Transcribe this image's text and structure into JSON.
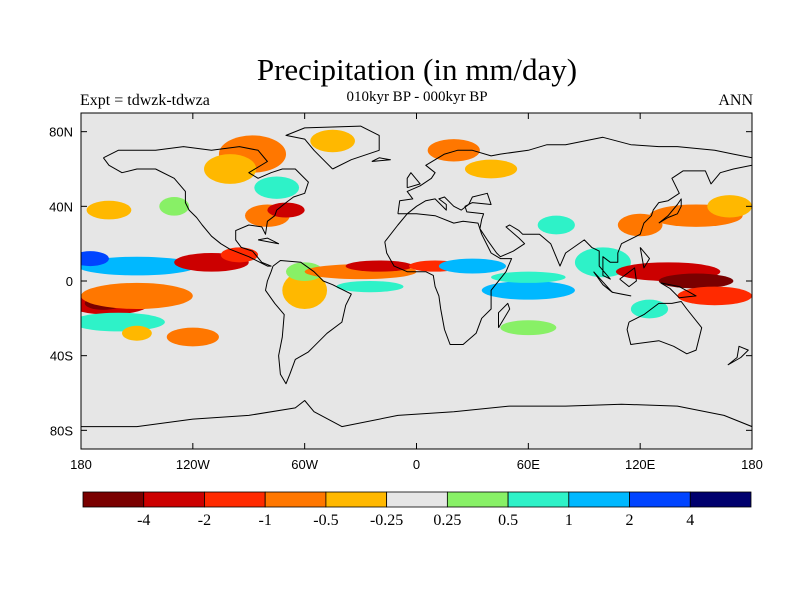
{
  "header": {
    "title": "Precipitation (in mm/day)",
    "subtitle": "010kyr BP - 000kyr BP",
    "left_label": "Expt = tdwzk-tdwza",
    "right_label": "ANN"
  },
  "map": {
    "projection": "cylindrical equidistant",
    "ocean_land_background": "#e6e6e6",
    "coastline_color": "#000000",
    "lat_range": [
      -90,
      90
    ],
    "lon_range": [
      -180,
      180
    ]
  },
  "axes": {
    "y_ticks": [
      {
        "value": 80,
        "label": "80N"
      },
      {
        "value": 40,
        "label": "40N"
      },
      {
        "value": 0,
        "label": "0"
      },
      {
        "value": -40,
        "label": "40S"
      },
      {
        "value": -80,
        "label": "80S"
      }
    ],
    "x_ticks": [
      {
        "value": -180,
        "label": "180"
      },
      {
        "value": -120,
        "label": "120W"
      },
      {
        "value": -60,
        "label": "60W"
      },
      {
        "value": 0,
        "label": "0"
      },
      {
        "value": 60,
        "label": "60E"
      },
      {
        "value": 120,
        "label": "120E"
      },
      {
        "value": 180,
        "label": "180"
      }
    ]
  },
  "colorbar": {
    "colors": [
      "#7a0000",
      "#cc0000",
      "#ff2a00",
      "#ff7700",
      "#ffb800",
      "#e6e6e6",
      "#88f066",
      "#2ef2c8",
      "#00b8ff",
      "#0044ff",
      "#00006e"
    ],
    "labels": [
      "-4",
      "-2",
      "-1",
      "-0.5",
      "-0.25",
      "0.25",
      "0.5",
      "1",
      "2",
      "4"
    ]
  },
  "anomaly_patches": [
    {
      "lon": -165,
      "lat": -12,
      "rx": 22,
      "ry": 6,
      "color": "#cc0000"
    },
    {
      "lon": -168,
      "lat": -12,
      "rx": 10,
      "ry": 3.5,
      "color": "#7a0000"
    },
    {
      "lon": -150,
      "lat": -8,
      "rx": 30,
      "ry": 7,
      "color": "#ff7700"
    },
    {
      "lon": -150,
      "lat": 8,
      "rx": 32,
      "ry": 5,
      "color": "#00b8ff"
    },
    {
      "lon": -175,
      "lat": 12,
      "rx": 10,
      "ry": 4,
      "color": "#0044ff"
    },
    {
      "lon": -160,
      "lat": -22,
      "rx": 25,
      "ry": 5,
      "color": "#2ef2c8"
    },
    {
      "lon": -165,
      "lat": 38,
      "rx": 12,
      "ry": 5,
      "color": "#ffb800"
    },
    {
      "lon": -120,
      "lat": -30,
      "rx": 14,
      "ry": 5,
      "color": "#ff7700"
    },
    {
      "lon": -110,
      "lat": 10,
      "rx": 20,
      "ry": 5,
      "color": "#cc0000"
    },
    {
      "lon": -95,
      "lat": 14,
      "rx": 10,
      "ry": 4,
      "color": "#ff2a00"
    },
    {
      "lon": -80,
      "lat": 35,
      "rx": 12,
      "ry": 6,
      "color": "#ff7700"
    },
    {
      "lon": -70,
      "lat": 38,
      "rx": 10,
      "ry": 4,
      "color": "#cc0000"
    },
    {
      "lon": -88,
      "lat": 68,
      "rx": 18,
      "ry": 10,
      "color": "#ff7700"
    },
    {
      "lon": -100,
      "lat": 60,
      "rx": 14,
      "ry": 8,
      "color": "#ffb800"
    },
    {
      "lon": -45,
      "lat": 75,
      "rx": 12,
      "ry": 6,
      "color": "#ffb800"
    },
    {
      "lon": -75,
      "lat": 50,
      "rx": 12,
      "ry": 6,
      "color": "#2ef2c8"
    },
    {
      "lon": -60,
      "lat": -5,
      "rx": 12,
      "ry": 10,
      "color": "#ffb800"
    },
    {
      "lon": -60,
      "lat": 5,
      "rx": 10,
      "ry": 5,
      "color": "#88f066"
    },
    {
      "lon": -30,
      "lat": 5,
      "rx": 30,
      "ry": 4,
      "color": "#ff7700"
    },
    {
      "lon": -20,
      "lat": 8,
      "rx": 18,
      "ry": 3,
      "color": "#cc0000"
    },
    {
      "lon": -25,
      "lat": -3,
      "rx": 18,
      "ry": 3,
      "color": "#2ef2c8"
    },
    {
      "lon": 10,
      "lat": 8,
      "rx": 14,
      "ry": 3,
      "color": "#ff2a00"
    },
    {
      "lon": 30,
      "lat": 8,
      "rx": 18,
      "ry": 4,
      "color": "#00b8ff"
    },
    {
      "lon": 60,
      "lat": -5,
      "rx": 25,
      "ry": 5,
      "color": "#00b8ff"
    },
    {
      "lon": 60,
      "lat": 2,
      "rx": 20,
      "ry": 3,
      "color": "#2ef2c8"
    },
    {
      "lon": 100,
      "lat": 10,
      "rx": 15,
      "ry": 8,
      "color": "#2ef2c8"
    },
    {
      "lon": 135,
      "lat": 5,
      "rx": 28,
      "ry": 5,
      "color": "#cc0000"
    },
    {
      "lon": 150,
      "lat": 0,
      "rx": 20,
      "ry": 4,
      "color": "#7a0000"
    },
    {
      "lon": 160,
      "lat": -8,
      "rx": 20,
      "ry": 5,
      "color": "#ff2a00"
    },
    {
      "lon": 150,
      "lat": 35,
      "rx": 25,
      "ry": 6,
      "color": "#ff7700"
    },
    {
      "lon": 168,
      "lat": 40,
      "rx": 12,
      "ry": 6,
      "color": "#ffb800"
    },
    {
      "lon": 120,
      "lat": 30,
      "rx": 12,
      "ry": 6,
      "color": "#ff7700"
    },
    {
      "lon": 125,
      "lat": -15,
      "rx": 10,
      "ry": 5,
      "color": "#2ef2c8"
    },
    {
      "lon": 20,
      "lat": 70,
      "rx": 14,
      "ry": 6,
      "color": "#ff7700"
    },
    {
      "lon": 40,
      "lat": 60,
      "rx": 14,
      "ry": 5,
      "color": "#ffb800"
    },
    {
      "lon": 75,
      "lat": 30,
      "rx": 10,
      "ry": 5,
      "color": "#2ef2c8"
    },
    {
      "lon": 60,
      "lat": -25,
      "rx": 15,
      "ry": 4,
      "color": "#88f066"
    },
    {
      "lon": -150,
      "lat": -28,
      "rx": 8,
      "ry": 4,
      "color": "#ffb800"
    },
    {
      "lon": -130,
      "lat": 40,
      "rx": 8,
      "ry": 5,
      "color": "#88f066"
    }
  ],
  "coastlines": [
    [
      [
        -168,
        66
      ],
      [
        -160,
        70
      ],
      [
        -140,
        70
      ],
      [
        -125,
        72
      ],
      [
        -110,
        70
      ],
      [
        -95,
        72
      ],
      [
        -85,
        70
      ],
      [
        -80,
        64
      ],
      [
        -90,
        58
      ],
      [
        -85,
        55
      ],
      [
        -78,
        58
      ],
      [
        -72,
        60
      ],
      [
        -65,
        60
      ],
      [
        -58,
        53
      ],
      [
        -60,
        47
      ],
      [
        -66,
        45
      ],
      [
        -70,
        42
      ],
      [
        -75,
        38
      ],
      [
        -76,
        35
      ],
      [
        -80,
        32
      ],
      [
        -81,
        25
      ],
      [
        -83,
        29
      ],
      [
        -90,
        30
      ],
      [
        -97,
        27
      ],
      [
        -97,
        22
      ],
      [
        -94,
        18
      ],
      [
        -88,
        16
      ],
      [
        -83,
        10
      ],
      [
        -78,
        8
      ],
      [
        -80,
        8
      ],
      [
        -84,
        10
      ],
      [
        -90,
        13
      ],
      [
        -100,
        17
      ],
      [
        -105,
        20
      ],
      [
        -110,
        24
      ],
      [
        -115,
        30
      ],
      [
        -118,
        34
      ],
      [
        -122,
        38
      ],
      [
        -124,
        42
      ],
      [
        -124,
        48
      ],
      [
        -130,
        55
      ],
      [
        -140,
        60
      ],
      [
        -150,
        60
      ],
      [
        -158,
        58
      ],
      [
        -165,
        62
      ],
      [
        -168,
        66
      ]
    ],
    [
      [
        -77,
        8
      ],
      [
        -73,
        11
      ],
      [
        -62,
        10
      ],
      [
        -55,
        5
      ],
      [
        -50,
        0
      ],
      [
        -45,
        -2
      ],
      [
        -35,
        -7
      ],
      [
        -38,
        -13
      ],
      [
        -40,
        -22
      ],
      [
        -48,
        -28
      ],
      [
        -55,
        -35
      ],
      [
        -58,
        -38
      ],
      [
        -65,
        -42
      ],
      [
        -68,
        -50
      ],
      [
        -70,
        -55
      ],
      [
        -73,
        -50
      ],
      [
        -74,
        -40
      ],
      [
        -72,
        -30
      ],
      [
        -71,
        -18
      ],
      [
        -76,
        -12
      ],
      [
        -81,
        -5
      ],
      [
        -80,
        0
      ],
      [
        -78,
        5
      ],
      [
        -77,
        8
      ]
    ],
    [
      [
        -17,
        21
      ],
      [
        -16,
        15
      ],
      [
        -12,
        8
      ],
      [
        -5,
        5
      ],
      [
        5,
        5
      ],
      [
        9,
        3
      ],
      [
        10,
        -3
      ],
      [
        12,
        -8
      ],
      [
        13,
        -15
      ],
      [
        15,
        -26
      ],
      [
        18,
        -34
      ],
      [
        25,
        -34
      ],
      [
        32,
        -28
      ],
      [
        35,
        -20
      ],
      [
        40,
        -15
      ],
      [
        40,
        -5
      ],
      [
        48,
        5
      ],
      [
        51,
        12
      ],
      [
        45,
        12
      ],
      [
        40,
        15
      ],
      [
        35,
        25
      ],
      [
        33,
        31
      ],
      [
        25,
        32
      ],
      [
        20,
        31
      ],
      [
        10,
        35
      ],
      [
        0,
        36
      ],
      [
        -5,
        36
      ],
      [
        -10,
        30
      ],
      [
        -17,
        21
      ]
    ],
    [
      [
        -10,
        36
      ],
      [
        -9,
        43
      ],
      [
        -2,
        44
      ],
      [
        -5,
        48
      ],
      [
        2,
        51
      ],
      [
        8,
        55
      ],
      [
        10,
        58
      ],
      [
        5,
        62
      ],
      [
        15,
        68
      ],
      [
        22,
        70
      ],
      [
        30,
        70
      ],
      [
        40,
        67
      ],
      [
        45,
        68
      ],
      [
        60,
        70
      ],
      [
        70,
        73
      ],
      [
        80,
        73
      ],
      [
        100,
        77
      ],
      [
        115,
        73
      ],
      [
        130,
        72
      ],
      [
        140,
        72
      ],
      [
        160,
        70
      ],
      [
        170,
        68
      ],
      [
        180,
        66
      ],
      [
        180,
        62
      ],
      [
        170,
        60
      ],
      [
        163,
        58
      ],
      [
        158,
        52
      ],
      [
        155,
        59
      ],
      [
        143,
        59
      ],
      [
        137,
        55
      ],
      [
        141,
        47
      ],
      [
        135,
        43
      ],
      [
        130,
        42
      ],
      [
        127,
        38
      ],
      [
        126,
        35
      ],
      [
        122,
        31
      ],
      [
        120,
        25
      ],
      [
        110,
        20
      ],
      [
        108,
        15
      ],
      [
        108,
        10
      ],
      [
        104,
        10
      ],
      [
        100,
        13
      ],
      [
        100,
        3
      ],
      [
        104,
        1
      ],
      [
        98,
        8
      ],
      [
        98,
        16
      ],
      [
        94,
        18
      ],
      [
        90,
        22
      ],
      [
        80,
        15
      ],
      [
        77,
        8
      ],
      [
        72,
        20
      ],
      [
        66,
        25
      ],
      [
        57,
        25
      ],
      [
        55,
        27
      ],
      [
        50,
        30
      ],
      [
        48,
        29
      ],
      [
        55,
        23
      ],
      [
        58,
        20
      ],
      [
        52,
        16
      ],
      [
        45,
        13
      ],
      [
        43,
        15
      ],
      [
        38,
        22
      ],
      [
        34,
        28
      ],
      [
        35,
        33
      ],
      [
        36,
        36
      ],
      [
        27,
        37
      ],
      [
        26,
        40
      ],
      [
        30,
        42
      ],
      [
        40,
        41
      ],
      [
        38,
        47
      ],
      [
        30,
        45
      ],
      [
        28,
        41
      ],
      [
        24,
        38
      ],
      [
        20,
        40
      ],
      [
        15,
        45
      ],
      [
        12,
        44
      ],
      [
        16,
        41
      ],
      [
        16,
        38
      ],
      [
        10,
        44
      ],
      [
        5,
        43
      ],
      [
        0,
        40
      ],
      [
        -5,
        36
      ],
      [
        -10,
        36
      ]
    ],
    [
      [
        114,
        -22
      ],
      [
        122,
        -18
      ],
      [
        130,
        -12
      ],
      [
        137,
        -12
      ],
      [
        142,
        -11
      ],
      [
        145,
        -15
      ],
      [
        153,
        -25
      ],
      [
        150,
        -37
      ],
      [
        145,
        -39
      ],
      [
        138,
        -35
      ],
      [
        130,
        -32
      ],
      [
        115,
        -34
      ],
      [
        113,
        -26
      ],
      [
        114,
        -22
      ]
    ],
    [
      [
        -45,
        60
      ],
      [
        -50,
        65
      ],
      [
        -55,
        70
      ],
      [
        -60,
        76
      ],
      [
        -70,
        78
      ],
      [
        -60,
        82
      ],
      [
        -30,
        83
      ],
      [
        -20,
        78
      ],
      [
        -20,
        70
      ],
      [
        -35,
        65
      ],
      [
        -45,
        60
      ]
    ],
    [
      [
        -180,
        -78
      ],
      [
        -150,
        -78
      ],
      [
        -120,
        -74
      ],
      [
        -90,
        -72
      ],
      [
        -65,
        -68
      ],
      [
        -60,
        -64
      ],
      [
        -55,
        -70
      ],
      [
        -40,
        -78
      ],
      [
        -10,
        -72
      ],
      [
        20,
        -70
      ],
      [
        50,
        -67
      ],
      [
        80,
        -67
      ],
      [
        110,
        -66
      ],
      [
        140,
        -67
      ],
      [
        165,
        -72
      ],
      [
        180,
        -78
      ]
    ],
    [
      [
        95,
        5
      ],
      [
        105,
        -6
      ],
      [
        100,
        -2
      ],
      [
        95,
        5
      ]
    ],
    [
      [
        105,
        -6
      ],
      [
        115,
        -8
      ],
      [
        110,
        -7
      ],
      [
        105,
        -6
      ]
    ],
    [
      [
        109,
        1
      ],
      [
        117,
        7
      ],
      [
        118,
        0
      ],
      [
        114,
        -3
      ],
      [
        109,
        1
      ]
    ],
    [
      [
        131,
        -1
      ],
      [
        141,
        -3
      ],
      [
        150,
        -8
      ],
      [
        141,
        -9
      ],
      [
        136,
        -4
      ],
      [
        131,
        -1
      ]
    ],
    [
      [
        130,
        31
      ],
      [
        135,
        34
      ],
      [
        140,
        36
      ],
      [
        142,
        40
      ],
      [
        142,
        44
      ],
      [
        140,
        41
      ],
      [
        135,
        35
      ],
      [
        130,
        31
      ]
    ],
    [
      [
        -5,
        50
      ],
      [
        2,
        52
      ],
      [
        -3,
        58
      ],
      [
        -5,
        55
      ],
      [
        -5,
        50
      ]
    ],
    [
      [
        44,
        -25
      ],
      [
        50,
        -15
      ],
      [
        49,
        -12
      ],
      [
        44,
        -17
      ],
      [
        44,
        -25
      ]
    ],
    [
      [
        167,
        -45
      ],
      [
        174,
        -41
      ],
      [
        178,
        -37
      ],
      [
        173,
        -35
      ],
      [
        172,
        -41
      ],
      [
        167,
        -45
      ]
    ],
    [
      [
        120,
        18
      ],
      [
        125,
        12
      ],
      [
        122,
        7
      ],
      [
        120,
        18
      ]
    ],
    [
      [
        -24,
        64
      ],
      [
        -14,
        65
      ],
      [
        -20,
        66
      ],
      [
        -24,
        64
      ]
    ],
    [
      [
        -85,
        22
      ],
      [
        -74,
        20
      ],
      [
        -80,
        23
      ],
      [
        -85,
        22
      ]
    ]
  ]
}
